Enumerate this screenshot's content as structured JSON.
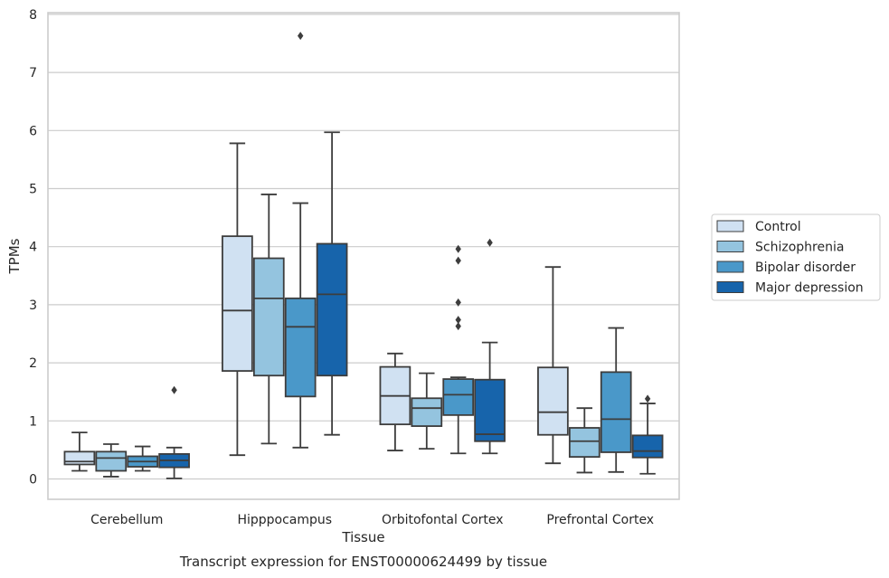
{
  "chart_data": {
    "type": "boxplot",
    "title": "Transcript expression for ENST00000624499 by tissue",
    "xlabel": "Tissue",
    "ylabel": "TPMs",
    "ylim": [
      -0.35,
      8.0
    ],
    "yticks": [
      0,
      1,
      2,
      3,
      4,
      5,
      6,
      7,
      8
    ],
    "grid": true,
    "legend_position": "right",
    "categories": [
      "Cerebellum",
      "Hipppocampus",
      "Orbitofontal Cortex",
      "Prefrontal Cortex"
    ],
    "series": [
      {
        "name": "Control",
        "color": "#d0e1f2",
        "boxes": [
          {
            "whislo": 0.14,
            "q1": 0.25,
            "med": 0.3,
            "q3": 0.47,
            "whishi": 0.8,
            "fliers": []
          },
          {
            "whislo": 0.41,
            "q1": 1.86,
            "med": 2.9,
            "q3": 4.18,
            "whishi": 5.78,
            "fliers": []
          },
          {
            "whislo": 0.49,
            "q1": 0.94,
            "med": 1.43,
            "q3": 1.93,
            "whishi": 2.16,
            "fliers": []
          },
          {
            "whislo": 0.27,
            "q1": 0.76,
            "med": 1.15,
            "q3": 1.92,
            "whishi": 3.65,
            "fliers": []
          }
        ]
      },
      {
        "name": "Schizophrenia",
        "color": "#94c4df",
        "boxes": [
          {
            "whislo": 0.04,
            "q1": 0.14,
            "med": 0.36,
            "q3": 0.47,
            "whishi": 0.6,
            "fliers": []
          },
          {
            "whislo": 0.61,
            "q1": 1.78,
            "med": 3.11,
            "q3": 3.8,
            "whishi": 4.9,
            "fliers": []
          },
          {
            "whislo": 0.52,
            "q1": 0.91,
            "med": 1.22,
            "q3": 1.39,
            "whishi": 1.82,
            "fliers": []
          },
          {
            "whislo": 0.11,
            "q1": 0.38,
            "med": 0.65,
            "q3": 0.88,
            "whishi": 1.22,
            "fliers": []
          }
        ]
      },
      {
        "name": "Bipolar disorder",
        "color": "#4a98c9",
        "boxes": [
          {
            "whislo": 0.14,
            "q1": 0.21,
            "med": 0.3,
            "q3": 0.39,
            "whishi": 0.56,
            "fliers": []
          },
          {
            "whislo": 0.54,
            "q1": 1.42,
            "med": 2.62,
            "q3": 3.11,
            "whishi": 4.75,
            "fliers": [
              7.63
            ]
          },
          {
            "whislo": 0.44,
            "q1": 1.1,
            "med": 1.45,
            "q3": 1.72,
            "whishi": 1.75,
            "fliers": [
              2.63,
              3.04,
              2.74,
              3.76,
              3.96
            ]
          },
          {
            "whislo": 0.12,
            "q1": 0.46,
            "med": 1.03,
            "q3": 1.84,
            "whishi": 2.6,
            "fliers": []
          }
        ]
      },
      {
        "name": "Major depression",
        "color": "#1764ab",
        "boxes": [
          {
            "whislo": 0.01,
            "q1": 0.2,
            "med": 0.32,
            "q3": 0.43,
            "whishi": 0.54,
            "fliers": [
              1.53
            ]
          },
          {
            "whislo": 0.76,
            "q1": 1.78,
            "med": 3.18,
            "q3": 4.05,
            "whishi": 5.97,
            "fliers": []
          },
          {
            "whislo": 0.44,
            "q1": 0.65,
            "med": 0.77,
            "q3": 1.71,
            "whishi": 2.35,
            "fliers": [
              4.07
            ]
          },
          {
            "whislo": 0.09,
            "q1": 0.37,
            "med": 0.48,
            "q3": 0.75,
            "whishi": 1.3,
            "fliers": [
              1.38
            ]
          }
        ]
      }
    ]
  }
}
